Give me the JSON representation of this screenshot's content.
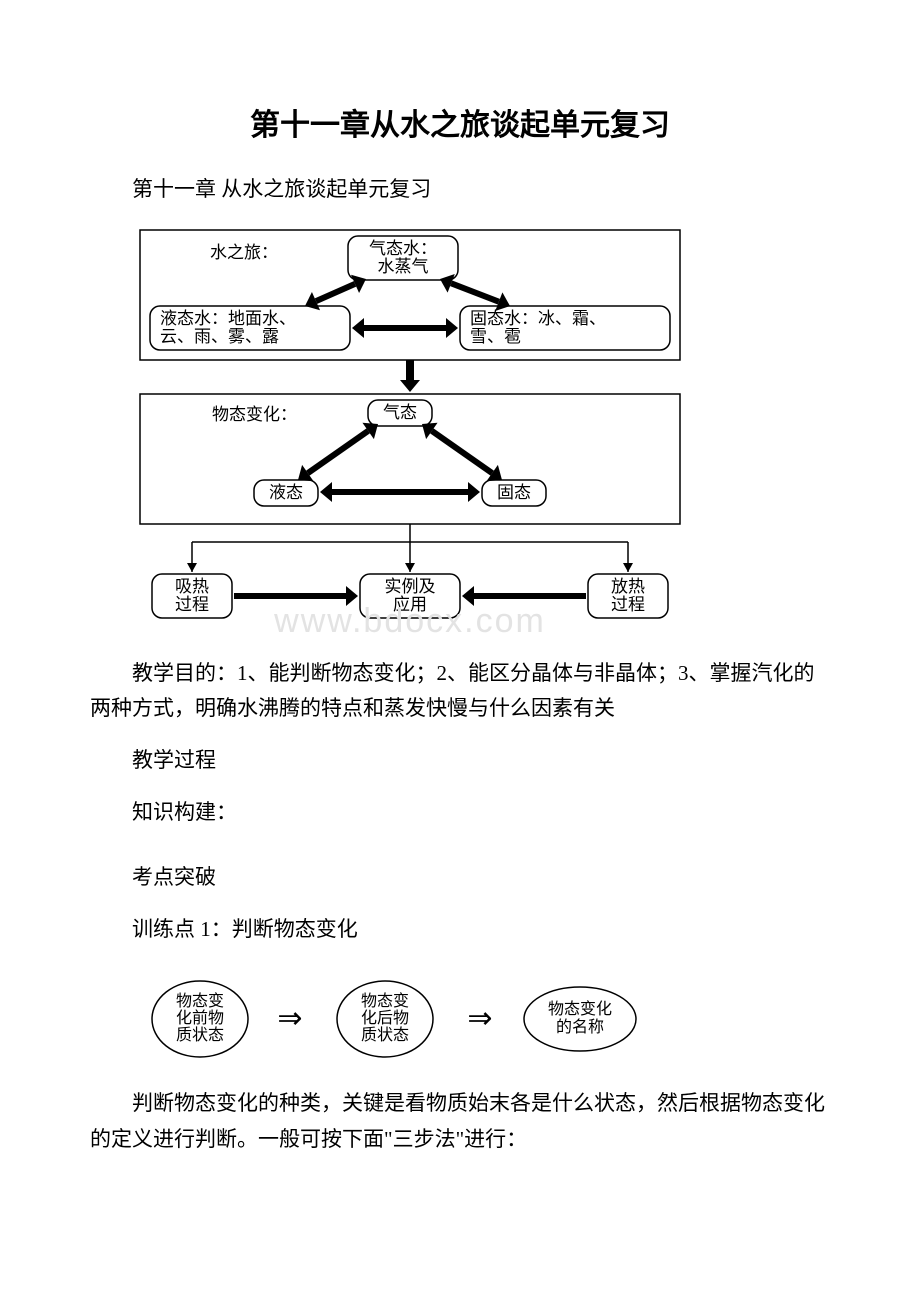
{
  "title": "第十一章从水之旅谈起单元复习",
  "subtitle": "第十一章 从水之旅谈起单元复习",
  "watermark": "www.bdocx.com",
  "paragraphs": {
    "objective": "教学目的：1、能判断物态变化；2、能区分晶体与非晶体；3、掌握汽化的两种方式，明确水沸腾的特点和蒸发快慢与什么因素有关",
    "process": "教学过程",
    "build": "知识构建：",
    "breakthrough": "考点突破",
    "train1": "训练点 1：判断物态变化",
    "explain": "判断物态变化的种类，关键是看物质始末各是什么状态，然后根据物态变化的定义进行判断。一般可按下面\"三步法\"进行："
  },
  "diagram1": {
    "stroke": "#000000",
    "fill": "#ffffff",
    "font": "17px SimSun",
    "labels": {
      "journey": "水之旅：",
      "gas": [
        "气态水：",
        "水蒸气"
      ],
      "liquid": [
        "液态水：地面水、",
        "云、雨、雾、露"
      ],
      "solid": [
        "固态水：冰、霜、",
        "雪、雹"
      ],
      "change": "物态变化：",
      "g": "气态",
      "l": "液态",
      "s": "固态",
      "absorb": [
        "吸热",
        "过程"
      ],
      "example": [
        "实例及",
        "应用"
      ],
      "release": [
        "放热",
        "过程"
      ]
    }
  },
  "diagram2": {
    "stroke": "#000000",
    "fill": "#ffffff",
    "font": "17px SimSun",
    "arrow_font": "24px SimSun",
    "labels": {
      "before": [
        "物态变",
        "化前物",
        "质状态"
      ],
      "after": [
        "物态变",
        "化后物",
        "质状态"
      ],
      "name": [
        "物态变化",
        "的名称"
      ]
    }
  }
}
